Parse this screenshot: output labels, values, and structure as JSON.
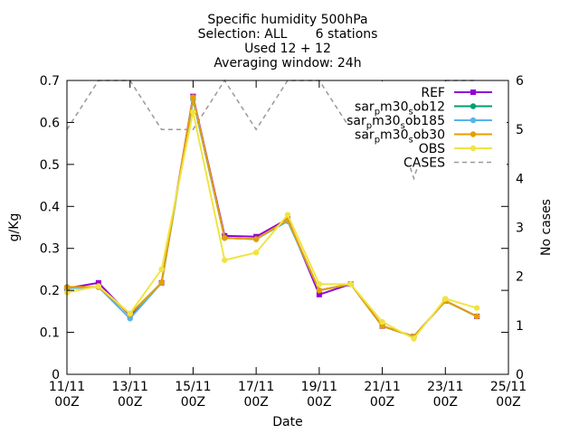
{
  "chart_data": {
    "type": "line",
    "title_lines": [
      "Specific humidity 500hPa",
      "Selection: ALL       6 stations",
      "Used 12 + 12",
      "Averaging window: 24h"
    ],
    "xlabel": "Date",
    "ylabel": "g/Kg",
    "y2label": "No cases",
    "x_ticks": [
      {
        "day": 0,
        "top": "11/11",
        "bottom": "00Z"
      },
      {
        "day": 2,
        "top": "13/11",
        "bottom": "00Z"
      },
      {
        "day": 4,
        "top": "15/11",
        "bottom": "00Z"
      },
      {
        "day": 6,
        "top": "17/11",
        "bottom": "00Z"
      },
      {
        "day": 8,
        "top": "19/11",
        "bottom": "00Z"
      },
      {
        "day": 10,
        "top": "21/11",
        "bottom": "00Z"
      },
      {
        "day": 12,
        "top": "23/11",
        "bottom": "00Z"
      },
      {
        "day": 14,
        "top": "25/11",
        "bottom": "00Z"
      }
    ],
    "xlim": [
      0,
      14
    ],
    "ylim": [
      0,
      0.7
    ],
    "y_ticks": [
      "0",
      "0.1",
      "0.2",
      "0.3",
      "0.4",
      "0.5",
      "0.6",
      "0.7"
    ],
    "y2lim": [
      0,
      6
    ],
    "y2_ticks": [
      "0",
      "1",
      "2",
      "3",
      "4",
      "5",
      "6"
    ],
    "legend_position": "top-right",
    "x": [
      0,
      1,
      2,
      3,
      4,
      5,
      6,
      7,
      8,
      9,
      10,
      11,
      12,
      13
    ],
    "series": [
      {
        "name": "REF",
        "color": "#9400d3",
        "marker": "square",
        "axis": "y",
        "values": [
          0.205,
          0.218,
          0.14,
          0.218,
          0.662,
          0.33,
          0.328,
          0.37,
          0.19,
          0.215,
          0.115,
          0.09,
          0.175,
          0.138
        ]
      },
      {
        "name": "sar_pm30_sob12",
        "color": "#009e73",
        "marker": "circle",
        "axis": "y",
        "values": [
          0.205,
          0.208,
          0.143,
          0.218,
          0.655,
          0.325,
          0.322,
          0.365,
          0.2,
          0.215,
          0.115,
          0.09,
          0.175,
          0.138
        ]
      },
      {
        "name": "sar_pm30_sob185",
        "color": "#56b4e9",
        "marker": "circle",
        "axis": "y",
        "values": [
          0.205,
          0.208,
          0.133,
          0.218,
          0.655,
          0.325,
          0.322,
          0.365,
          0.2,
          0.215,
          0.115,
          0.09,
          0.175,
          0.138
        ]
      },
      {
        "name": "sar_pm30_sob30",
        "color": "#e69f00",
        "marker": "circle",
        "axis": "y",
        "values": [
          0.208,
          0.208,
          0.143,
          0.218,
          0.66,
          0.325,
          0.322,
          0.368,
          0.2,
          0.215,
          0.115,
          0.09,
          0.175,
          0.138
        ]
      },
      {
        "name": "OBS",
        "color": "#f0e442",
        "marker": "circle",
        "axis": "y",
        "values": [
          0.195,
          0.21,
          0.145,
          0.25,
          0.625,
          0.272,
          0.29,
          0.38,
          0.215,
          0.215,
          0.125,
          0.085,
          0.18,
          0.158
        ]
      },
      {
        "name": "CASES",
        "color": "#999999",
        "marker": "none",
        "dash": true,
        "axis": "y2",
        "values": [
          5,
          6,
          6,
          5,
          5,
          6,
          5,
          6,
          6,
          5,
          6,
          4,
          6,
          6
        ]
      }
    ],
    "legend_lines": [
      [
        {
          "text": "REF"
        }
      ],
      [
        {
          "text": "sar"
        },
        {
          "text": "p",
          "sub": true
        },
        {
          "text": "m30"
        },
        {
          "text": "s",
          "sub": true
        },
        {
          "text": "ob12"
        }
      ],
      [
        {
          "text": "sar"
        },
        {
          "text": "p",
          "sub": true
        },
        {
          "text": "m30"
        },
        {
          "text": "s",
          "sub": true
        },
        {
          "text": "ob185"
        }
      ],
      [
        {
          "text": "sar"
        },
        {
          "text": "p",
          "sub": true
        },
        {
          "text": "m30"
        },
        {
          "text": "s",
          "sub": true
        },
        {
          "text": "ob30"
        }
      ],
      [
        {
          "text": "OBS"
        }
      ],
      [
        {
          "text": "CASES"
        }
      ]
    ],
    "grid": false
  }
}
